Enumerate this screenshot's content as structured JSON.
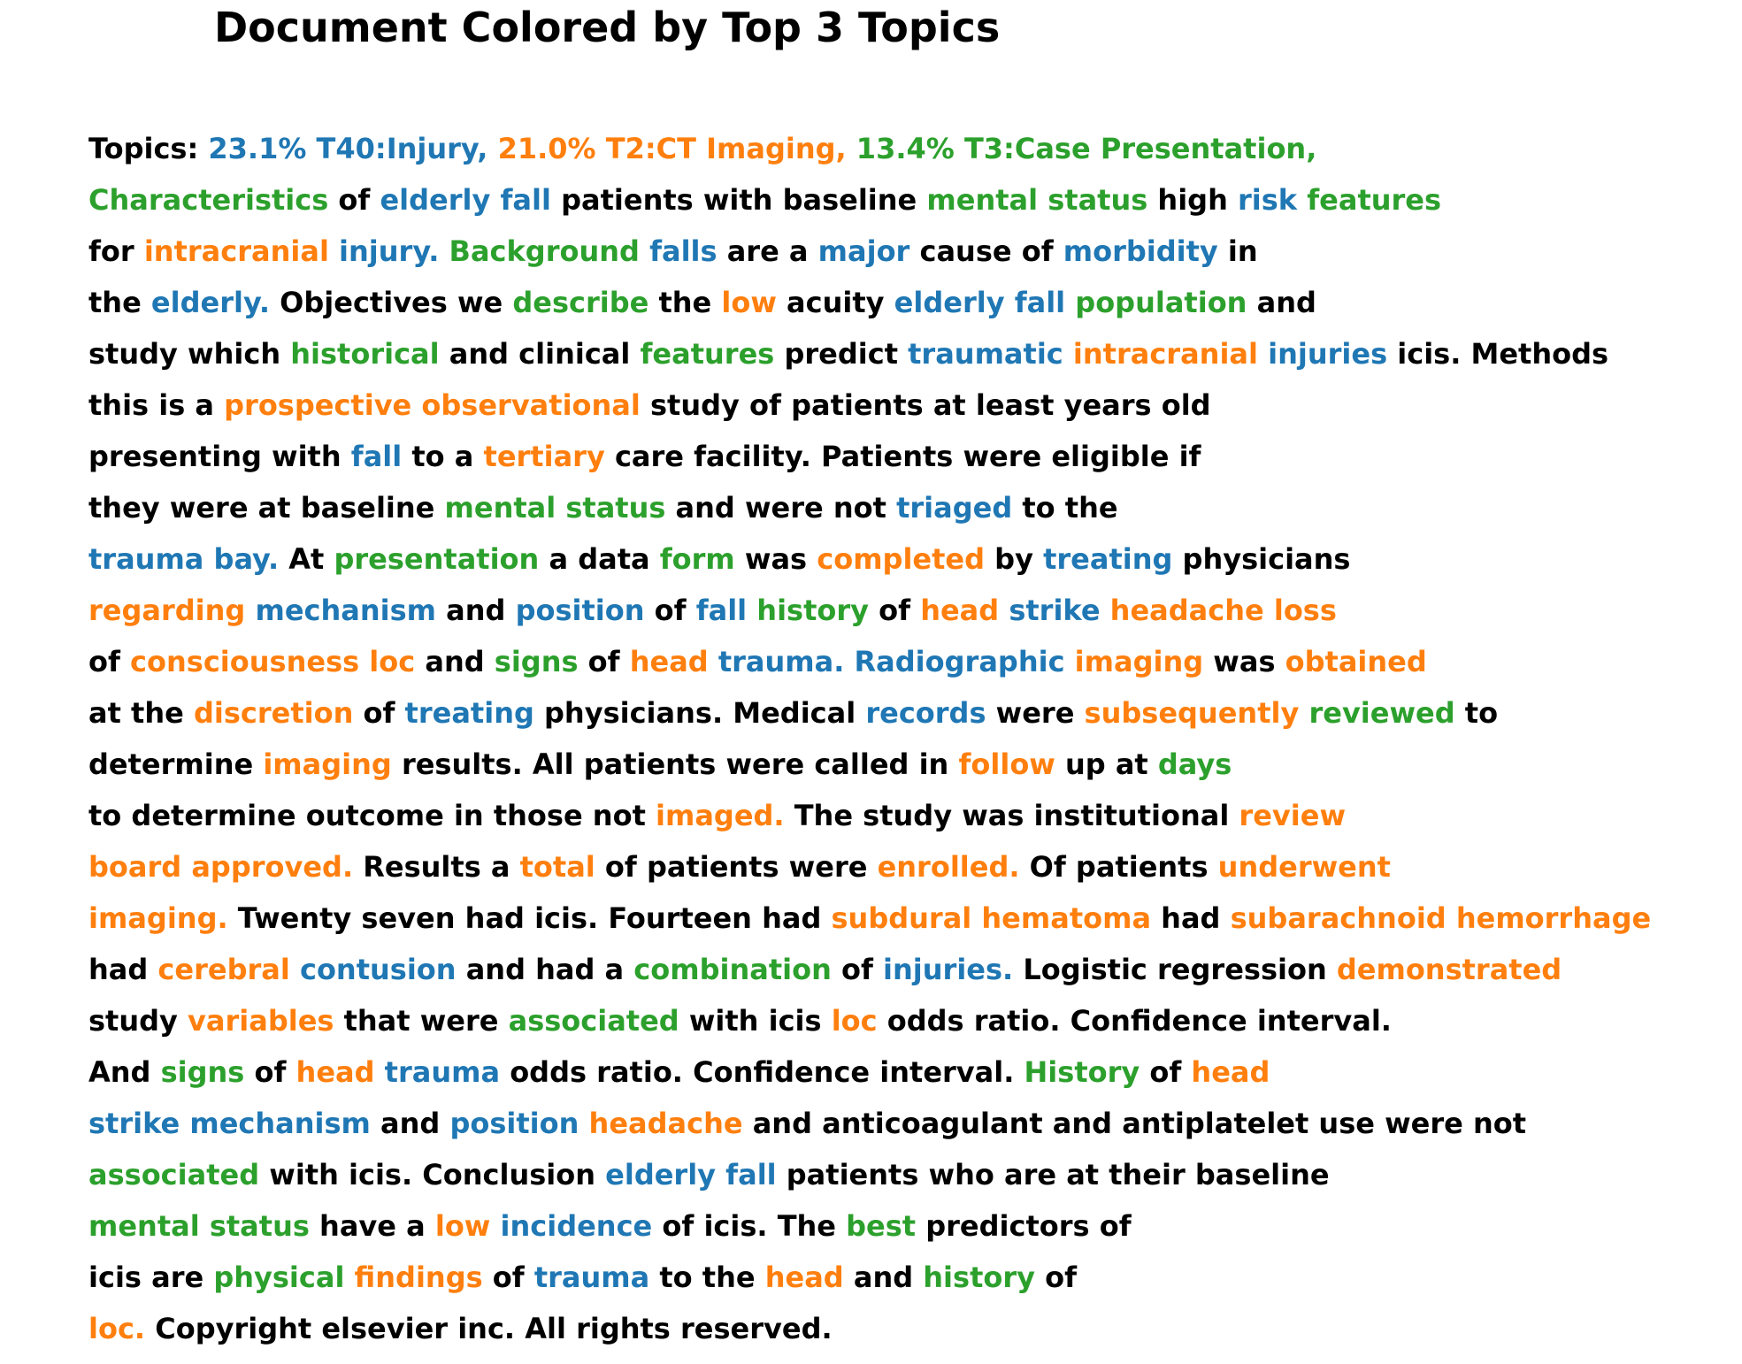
{
  "title": "Document Colored by Top 3 Topics",
  "colors": {
    "0": "#000000",
    "1": "#1f77b4",
    "2": "#ff7f0e",
    "3": "#2ca02c"
  },
  "lines": [
    [
      [
        0,
        "Topics: "
      ],
      [
        1,
        "23.1% T40:Injury, "
      ],
      [
        2,
        "21.0% T2:CT Imaging, "
      ],
      [
        3,
        "13.4% T3:Case Presentation,"
      ]
    ],
    [
      [
        3,
        "Characteristics"
      ],
      [
        0,
        " of "
      ],
      [
        1,
        "elderly fall"
      ],
      [
        0,
        " patients with baseline "
      ],
      [
        3,
        "mental status"
      ],
      [
        0,
        " high "
      ],
      [
        1,
        "risk"
      ],
      [
        0,
        " "
      ],
      [
        3,
        "features"
      ]
    ],
    [
      [
        0,
        "for "
      ],
      [
        2,
        "intracranial"
      ],
      [
        0,
        " "
      ],
      [
        1,
        "injury."
      ],
      [
        0,
        " "
      ],
      [
        3,
        "Background"
      ],
      [
        0,
        " "
      ],
      [
        1,
        "falls"
      ],
      [
        0,
        " are a "
      ],
      [
        1,
        "major"
      ],
      [
        0,
        " cause of "
      ],
      [
        1,
        "morbidity"
      ],
      [
        0,
        " in"
      ]
    ],
    [
      [
        0,
        "the "
      ],
      [
        1,
        "elderly."
      ],
      [
        0,
        " Objectives we "
      ],
      [
        3,
        "describe"
      ],
      [
        0,
        " the "
      ],
      [
        2,
        "low"
      ],
      [
        0,
        " acuity "
      ],
      [
        1,
        "elderly fall"
      ],
      [
        0,
        " "
      ],
      [
        3,
        "population"
      ],
      [
        0,
        " and"
      ]
    ],
    [
      [
        0,
        "study which "
      ],
      [
        3,
        "historical"
      ],
      [
        0,
        " and clinical "
      ],
      [
        3,
        "features"
      ],
      [
        0,
        " predict "
      ],
      [
        1,
        "traumatic"
      ],
      [
        0,
        " "
      ],
      [
        2,
        "intracranial"
      ],
      [
        0,
        " "
      ],
      [
        1,
        "injuries"
      ],
      [
        0,
        " icis. Methods"
      ]
    ],
    [
      [
        0,
        "this is a "
      ],
      [
        2,
        "prospective observational"
      ],
      [
        0,
        " study of patients at least years old"
      ]
    ],
    [
      [
        0,
        "presenting with "
      ],
      [
        1,
        "fall"
      ],
      [
        0,
        " to a "
      ],
      [
        2,
        "tertiary"
      ],
      [
        0,
        " care facility. Patients were eligible if"
      ]
    ],
    [
      [
        0,
        "they were at baseline "
      ],
      [
        3,
        "mental status"
      ],
      [
        0,
        " and were not "
      ],
      [
        1,
        "triaged"
      ],
      [
        0,
        " to the"
      ]
    ],
    [
      [
        1,
        "trauma bay."
      ],
      [
        0,
        " At "
      ],
      [
        3,
        "presentation"
      ],
      [
        0,
        " a data "
      ],
      [
        3,
        "form"
      ],
      [
        0,
        " was "
      ],
      [
        2,
        "completed"
      ],
      [
        0,
        " by "
      ],
      [
        1,
        "treating"
      ],
      [
        0,
        " physicians"
      ]
    ],
    [
      [
        2,
        "regarding"
      ],
      [
        0,
        " "
      ],
      [
        1,
        "mechanism"
      ],
      [
        0,
        " and "
      ],
      [
        1,
        "position"
      ],
      [
        0,
        " of "
      ],
      [
        1,
        "fall"
      ],
      [
        0,
        " "
      ],
      [
        3,
        "history"
      ],
      [
        0,
        " of "
      ],
      [
        2,
        "head"
      ],
      [
        0,
        " "
      ],
      [
        1,
        "strike"
      ],
      [
        0,
        " "
      ],
      [
        2,
        "headache loss"
      ]
    ],
    [
      [
        0,
        "of "
      ],
      [
        2,
        "consciousness loc"
      ],
      [
        0,
        " and "
      ],
      [
        3,
        "signs"
      ],
      [
        0,
        " of "
      ],
      [
        2,
        "head"
      ],
      [
        0,
        " "
      ],
      [
        1,
        "trauma. Radiographic"
      ],
      [
        0,
        " "
      ],
      [
        2,
        "imaging"
      ],
      [
        0,
        " was "
      ],
      [
        2,
        "obtained"
      ]
    ],
    [
      [
        0,
        "at the "
      ],
      [
        2,
        "discretion"
      ],
      [
        0,
        " of "
      ],
      [
        1,
        "treating"
      ],
      [
        0,
        " physicians. Medical "
      ],
      [
        1,
        "records"
      ],
      [
        0,
        " were "
      ],
      [
        2,
        "subsequently"
      ],
      [
        0,
        " "
      ],
      [
        3,
        "reviewed"
      ],
      [
        0,
        " to"
      ]
    ],
    [
      [
        0,
        "determine "
      ],
      [
        2,
        "imaging"
      ],
      [
        0,
        " results. All patients were called in "
      ],
      [
        2,
        "follow"
      ],
      [
        0,
        " up at "
      ],
      [
        3,
        "days"
      ]
    ],
    [
      [
        0,
        "to determine outcome in those not "
      ],
      [
        2,
        "imaged."
      ],
      [
        0,
        " The study was institutional "
      ],
      [
        2,
        "review"
      ]
    ],
    [
      [
        2,
        "board approved."
      ],
      [
        0,
        " Results a "
      ],
      [
        2,
        "total"
      ],
      [
        0,
        " of patients were "
      ],
      [
        2,
        "enrolled."
      ],
      [
        0,
        " Of patients "
      ],
      [
        2,
        "underwent"
      ]
    ],
    [
      [
        2,
        "imaging."
      ],
      [
        0,
        " Twenty seven had icis. Fourteen had "
      ],
      [
        2,
        "subdural hematoma"
      ],
      [
        0,
        " had "
      ],
      [
        2,
        "subarachnoid hemorrhage"
      ]
    ],
    [
      [
        0,
        "had "
      ],
      [
        2,
        "cerebral"
      ],
      [
        0,
        " "
      ],
      [
        1,
        "contusion"
      ],
      [
        0,
        " and had a "
      ],
      [
        3,
        "combination"
      ],
      [
        0,
        " of "
      ],
      [
        1,
        "injuries."
      ],
      [
        0,
        " Logistic regression "
      ],
      [
        2,
        "demonstrated"
      ]
    ],
    [
      [
        0,
        "study "
      ],
      [
        2,
        "variables"
      ],
      [
        0,
        " that were "
      ],
      [
        3,
        "associated"
      ],
      [
        0,
        " with icis "
      ],
      [
        2,
        "loc"
      ],
      [
        0,
        " odds ratio. Confidence interval."
      ]
    ],
    [
      [
        0,
        "And "
      ],
      [
        3,
        "signs"
      ],
      [
        0,
        " of "
      ],
      [
        2,
        "head"
      ],
      [
        0,
        " "
      ],
      [
        1,
        "trauma"
      ],
      [
        0,
        " odds ratio. Confidence interval. "
      ],
      [
        3,
        "History"
      ],
      [
        0,
        " of "
      ],
      [
        2,
        "head"
      ]
    ],
    [
      [
        1,
        "strike mechanism"
      ],
      [
        0,
        " and "
      ],
      [
        1,
        "position"
      ],
      [
        0,
        " "
      ],
      [
        2,
        "headache"
      ],
      [
        0,
        " and anticoagulant and antiplatelet use were not"
      ]
    ],
    [
      [
        3,
        "associated"
      ],
      [
        0,
        " with icis. Conclusion "
      ],
      [
        1,
        "elderly fall"
      ],
      [
        0,
        " patients who are at their baseline"
      ]
    ],
    [
      [
        3,
        "mental status"
      ],
      [
        0,
        " have a "
      ],
      [
        2,
        "low"
      ],
      [
        0,
        " "
      ],
      [
        1,
        "incidence"
      ],
      [
        0,
        " of icis. The "
      ],
      [
        3,
        "best"
      ],
      [
        0,
        " predictors of"
      ]
    ],
    [
      [
        0,
        "icis are "
      ],
      [
        3,
        "physical"
      ],
      [
        0,
        " "
      ],
      [
        2,
        "findings"
      ],
      [
        0,
        " of "
      ],
      [
        1,
        "trauma"
      ],
      [
        0,
        " to the "
      ],
      [
        2,
        "head"
      ],
      [
        0,
        " and "
      ],
      [
        3,
        "history"
      ],
      [
        0,
        " of"
      ]
    ],
    [
      [
        2,
        "loc."
      ],
      [
        0,
        " Copyright elsevier inc. All rights reserved."
      ]
    ]
  ]
}
